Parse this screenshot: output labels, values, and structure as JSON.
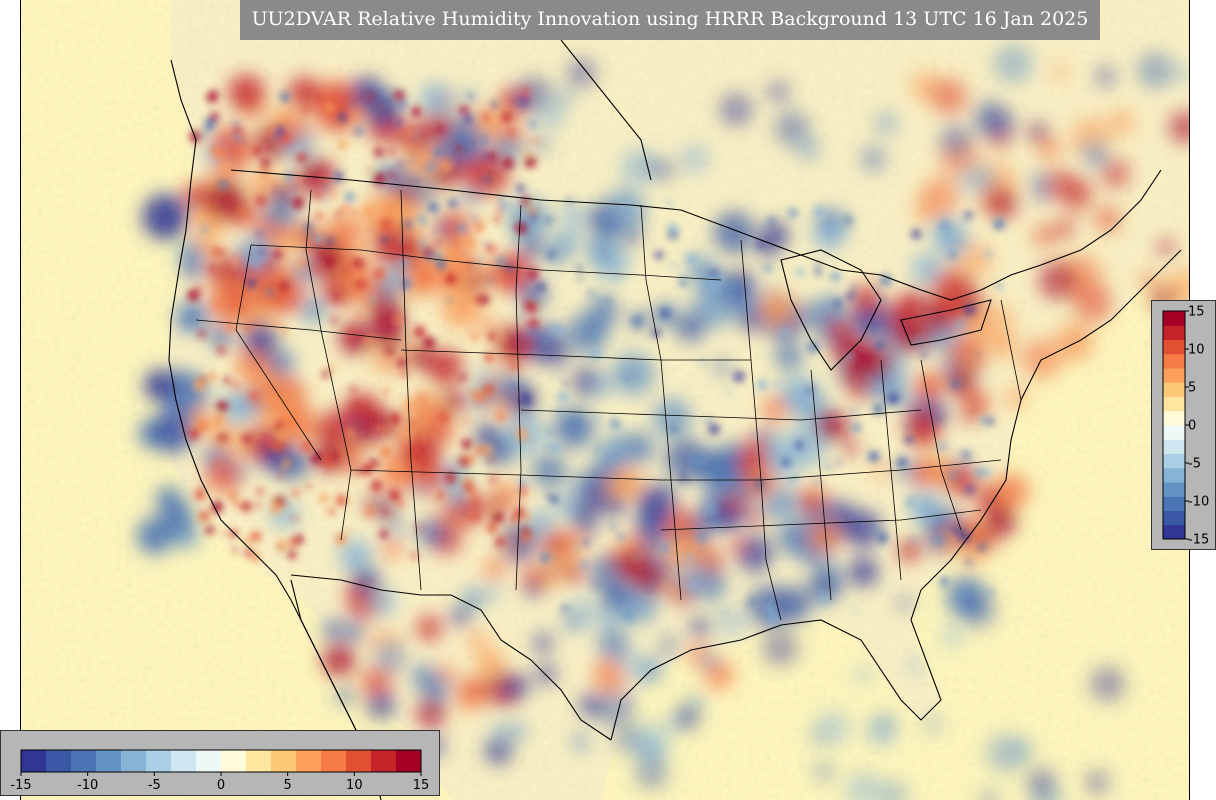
{
  "title": "UU2DVAR Relative Humidity Innovation using HRRR Background 13 UTC 16 Jan 2025",
  "colorbar": {
    "min": -15,
    "max": 15,
    "ticks": [
      -15,
      -10,
      -5,
      0,
      5,
      10,
      15
    ],
    "tick_labels": [
      "-15",
      "-10",
      "-5",
      "0",
      "5",
      "10",
      "15"
    ],
    "colors": [
      "#313695",
      "#3a58a6",
      "#4a74b4",
      "#6393c4",
      "#86b3d6",
      "#abd0e6",
      "#cfe7f0",
      "#eef8f6",
      "#fffbd8",
      "#fee6a0",
      "#fdc778",
      "#fca05a",
      "#f57a44",
      "#e34f33",
      "#c6232a",
      "#a50026"
    ]
  },
  "map": {
    "region": "Contiguous United States",
    "background_color": "#fff7bc",
    "land_color": "#fbf1c4"
  }
}
